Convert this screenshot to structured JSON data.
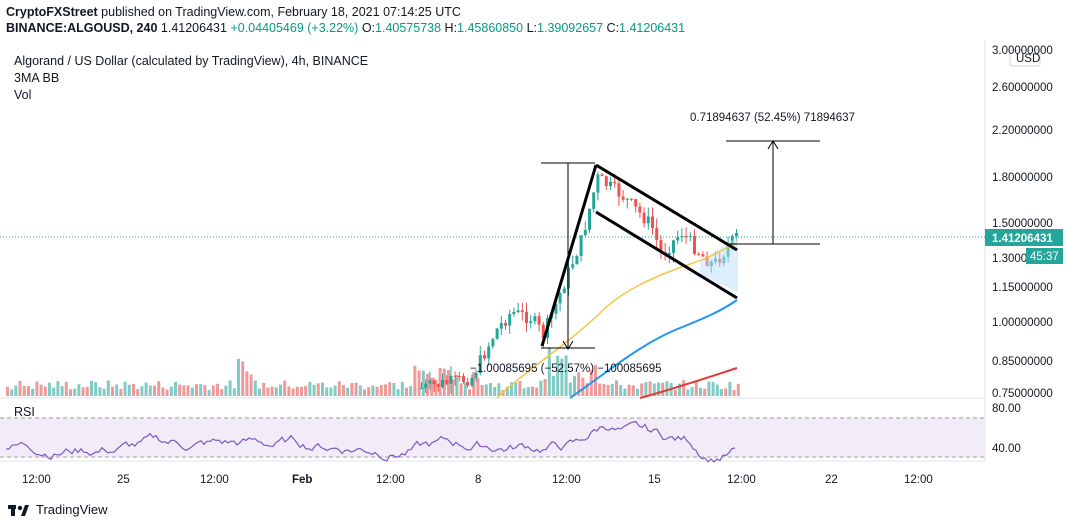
{
  "header": {
    "publisher": "CryptoFXStreet",
    "published_text": "published on TradingView.com, February 18, 2021 07:14:25 UTC",
    "symbol": "BINANCE:ALGOUSD, 240",
    "last": "1.41206431",
    "change": "+0.04405469 (+3.22%)",
    "o_label": "O:",
    "o_value": "1.40575738",
    "h_label": "H:",
    "h_value": "1.45860850",
    "l_label": "L:",
    "l_value": "1.39092657",
    "c_label": "C:",
    "c_value": "1.41206431"
  },
  "legend": {
    "title": "Algorand / US Dollar (calculated by TradingView), 4h, BINANCE",
    "indicator": "3MA BB",
    "volume": "Vol",
    "rsi": "RSI"
  },
  "price_axis": {
    "currency": "USD",
    "ticks": [
      "3.00000000",
      "2.60000000",
      "2.20000000",
      "1.80000000",
      "1.50000000",
      "1.30000000",
      "1.15000000",
      "1.00000000",
      "0.85000000",
      "0.75000000"
    ],
    "last_price_label": "1.41206431",
    "countdown": "45:37"
  },
  "rsi_axis": {
    "ticks": [
      "80.00",
      "40.00"
    ]
  },
  "time_axis": {
    "ticks": [
      "12:00",
      "25",
      "12:00",
      "Feb",
      "12:00",
      "8",
      "12:00",
      "15",
      "12:00",
      "22",
      "12:00"
    ]
  },
  "annotations": {
    "target": "0.71894637 (52.45%) 71894637",
    "pole": "−1.00085695 (−52.57%) −100085695"
  },
  "footer": {
    "brand": "TradingView"
  },
  "colors": {
    "up": "#26a69a",
    "down": "#ef5350",
    "ma_yellow": "#f5c542",
    "ma_blue": "#2196f3",
    "ma_red": "#e53935",
    "rsi": "#7e57c2",
    "rsi_band": "#ede7f6"
  },
  "chart_data": {
    "type": "candlestick",
    "title": "Algorand / US Dollar (calculated by TradingView), 4h, BINANCE",
    "interval": "4h",
    "y_scale": "log",
    "ylim": [
      0.72,
      3.05
    ],
    "last_price": 1.41206431,
    "pattern": "falling wedge / bull flag",
    "flagpole": {
      "from_price": 0.9,
      "to_price": 1.9,
      "move": -1.00085695,
      "move_pct": -52.57
    },
    "wedge_upper": [
      [
        1.9,
        1.33
      ]
    ],
    "wedge_lower": [
      [
        1.57,
        1.1
      ]
    ],
    "target_move": {
      "value": 0.71894637,
      "pct": 52.45,
      "from_price": 1.37,
      "to_price": 2.09
    },
    "rsi_levels": [
      80,
      40
    ],
    "rsi_last": 52
  }
}
